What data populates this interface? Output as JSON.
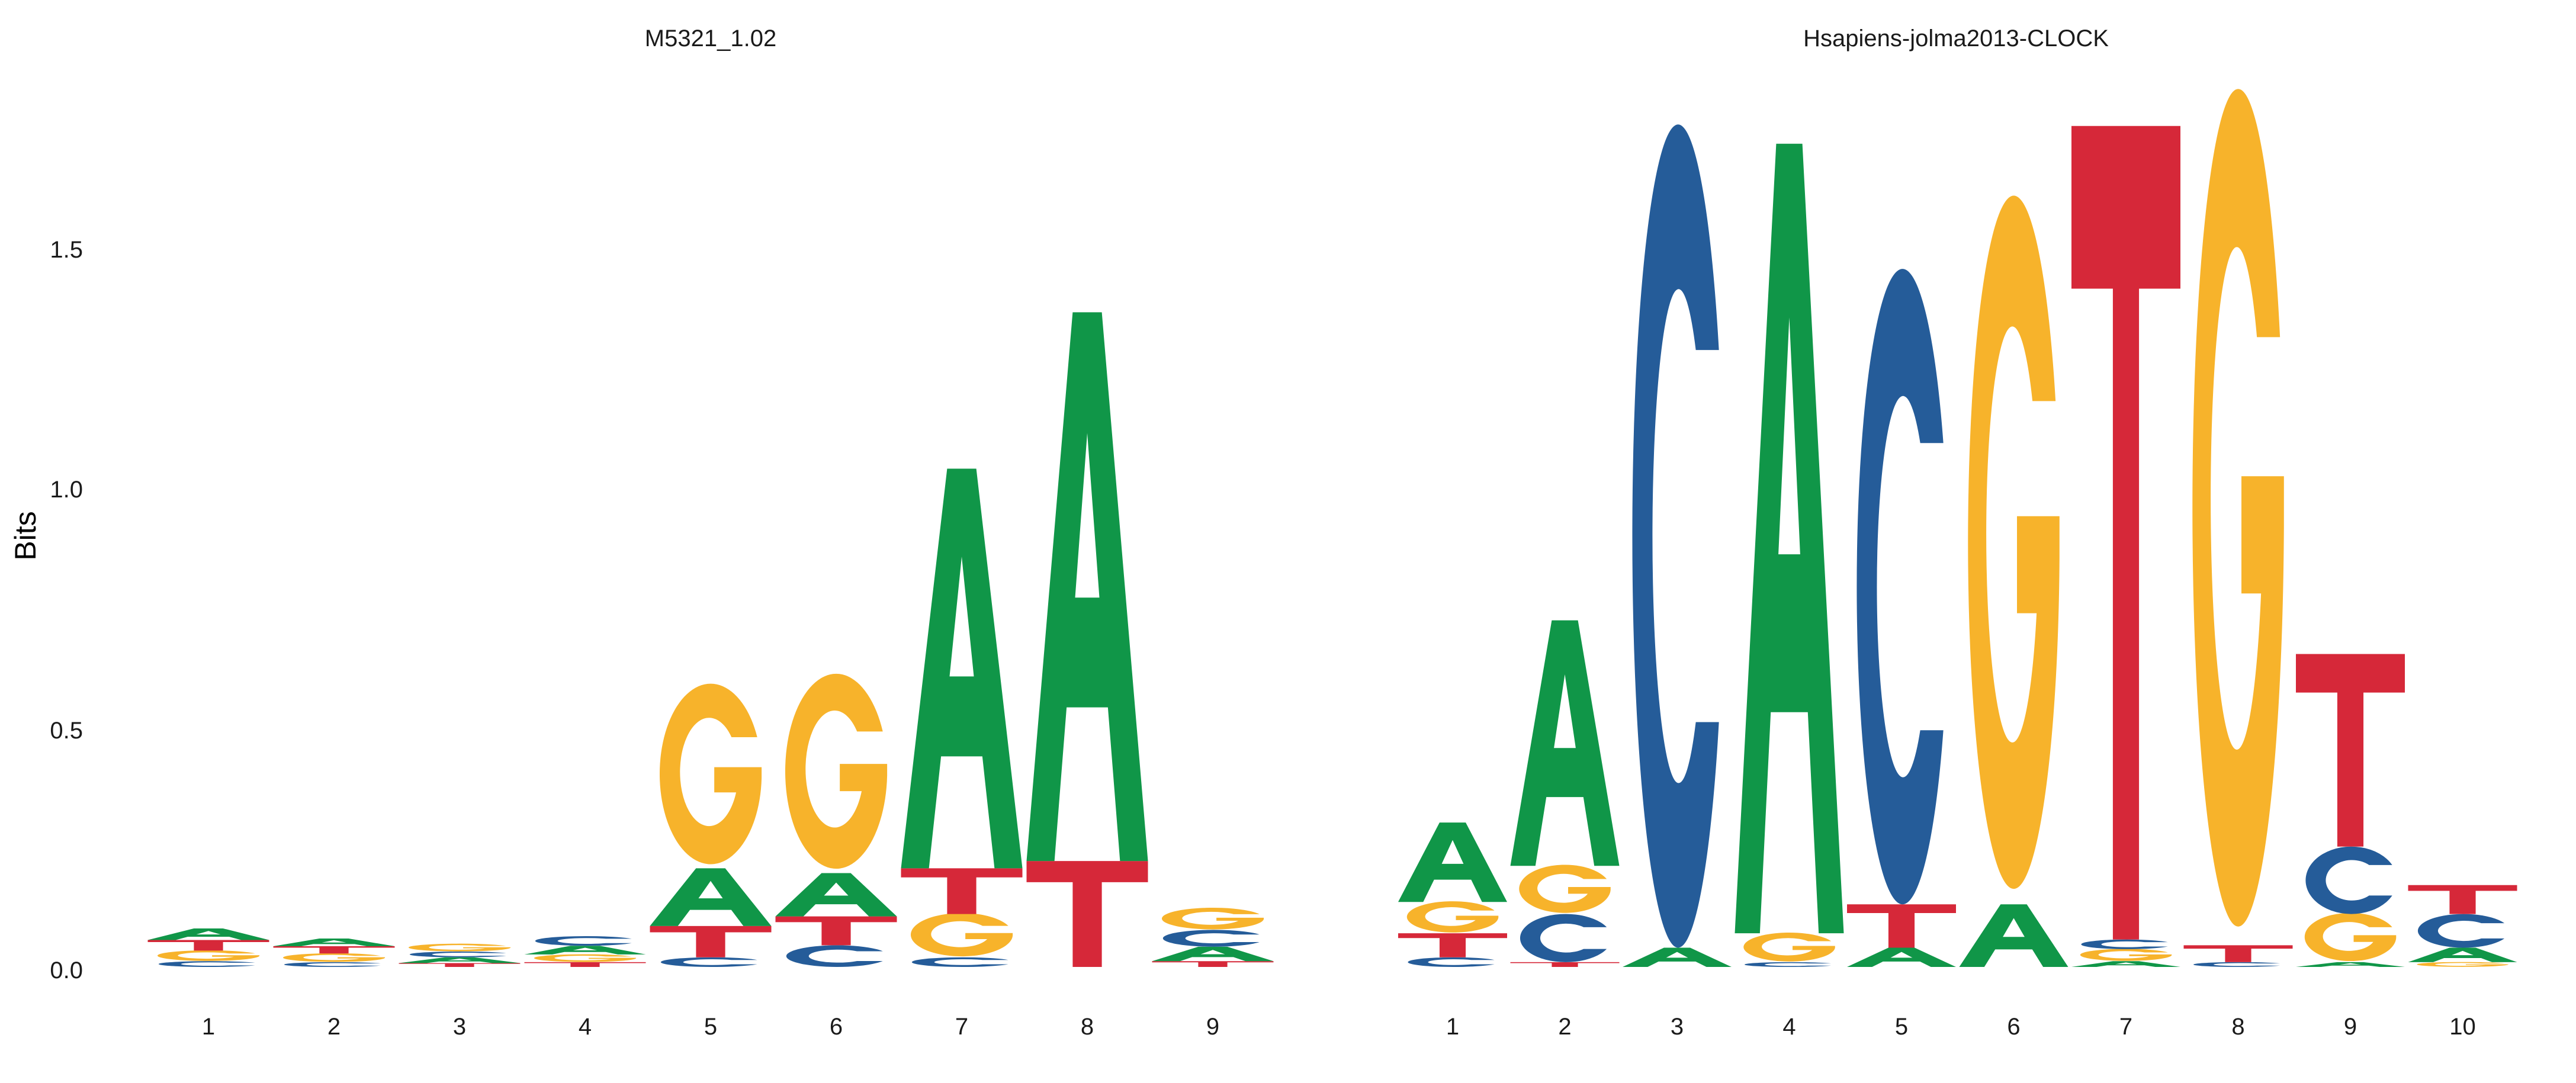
{
  "colors": {
    "A": "#109648",
    "C": "#255C99",
    "G": "#F7B32B",
    "T": "#D62839"
  },
  "chart_data": [
    {
      "type": "sequence-logo",
      "title": "M5321_1.02",
      "ylabel": "Bits",
      "ylim": [
        0,
        1.8
      ],
      "yticks": [
        "0.0",
        "0.5",
        "1.0",
        "1.5"
      ],
      "positions": [
        {
          "x": "1",
          "stack": [
            {
              "letter": "C",
              "bits": 0.012
            },
            {
              "letter": "G",
              "bits": 0.022
            },
            {
              "letter": "T",
              "bits": 0.022
            },
            {
              "letter": "A",
              "bits": 0.024
            }
          ]
        },
        {
          "x": "2",
          "stack": [
            {
              "letter": "C",
              "bits": 0.01
            },
            {
              "letter": "G",
              "bits": 0.018
            },
            {
              "letter": "T",
              "bits": 0.015
            },
            {
              "letter": "A",
              "bits": 0.016
            }
          ]
        },
        {
          "x": "3",
          "stack": [
            {
              "letter": "T",
              "bits": 0.008
            },
            {
              "letter": "A",
              "bits": 0.012
            },
            {
              "letter": "C",
              "bits": 0.012
            },
            {
              "letter": "G",
              "bits": 0.016
            }
          ]
        },
        {
          "x": "4",
          "stack": [
            {
              "letter": "T",
              "bits": 0.01
            },
            {
              "letter": "G",
              "bits": 0.016
            },
            {
              "letter": "A",
              "bits": 0.018
            },
            {
              "letter": "C",
              "bits": 0.02
            }
          ]
        },
        {
          "x": "5",
          "stack": [
            {
              "letter": "C",
              "bits": 0.02
            },
            {
              "letter": "T",
              "bits": 0.065
            },
            {
              "letter": "A",
              "bits": 0.12
            },
            {
              "letter": "G",
              "bits": 0.375
            }
          ]
        },
        {
          "x": "6",
          "stack": [
            {
              "letter": "C",
              "bits": 0.045
            },
            {
              "letter": "T",
              "bits": 0.06
            },
            {
              "letter": "A",
              "bits": 0.09
            },
            {
              "letter": "G",
              "bits": 0.405
            }
          ]
        },
        {
          "x": "7",
          "stack": [
            {
              "letter": "C",
              "bits": 0.02
            },
            {
              "letter": "G",
              "bits": 0.09
            },
            {
              "letter": "T",
              "bits": 0.095
            },
            {
              "letter": "A",
              "bits": 0.83
            }
          ]
        },
        {
          "x": "8",
          "stack": [
            {
              "letter": "T",
              "bits": 0.22
            },
            {
              "letter": "A",
              "bits": 1.14
            }
          ]
        },
        {
          "x": "9",
          "stack": [
            {
              "letter": "T",
              "bits": 0.012
            },
            {
              "letter": "A",
              "bits": 0.03
            },
            {
              "letter": "C",
              "bits": 0.035
            },
            {
              "letter": "G",
              "bits": 0.045
            }
          ]
        }
      ]
    },
    {
      "type": "sequence-logo",
      "title": "Hsapiens-jolma2013-CLOCK",
      "ylabel": "",
      "ylim": [
        0,
        1.8
      ],
      "yticks": [],
      "positions": [
        {
          "x": "1",
          "stack": [
            {
              "letter": "C",
              "bits": 0.02
            },
            {
              "letter": "T",
              "bits": 0.05
            },
            {
              "letter": "G",
              "bits": 0.065
            },
            {
              "letter": "A",
              "bits": 0.165
            }
          ]
        },
        {
          "x": "2",
          "stack": [
            {
              "letter": "T",
              "bits": 0.01
            },
            {
              "letter": "C",
              "bits": 0.1
            },
            {
              "letter": "G",
              "bits": 0.1
            },
            {
              "letter": "A",
              "bits": 0.51
            }
          ]
        },
        {
          "x": "3",
          "stack": [
            {
              "letter": "A",
              "bits": 0.04
            },
            {
              "letter": "C",
              "bits": 1.71
            }
          ]
        },
        {
          "x": "4",
          "stack": [
            {
              "letter": "C",
              "bits": 0.01
            },
            {
              "letter": "G",
              "bits": 0.06
            },
            {
              "letter": "A",
              "bits": 1.64
            }
          ]
        },
        {
          "x": "5",
          "stack": [
            {
              "letter": "A",
              "bits": 0.04
            },
            {
              "letter": "T",
              "bits": 0.09
            },
            {
              "letter": "C",
              "bits": 1.32
            }
          ]
        },
        {
          "x": "6",
          "stack": [
            {
              "letter": "A",
              "bits": 0.13
            },
            {
              "letter": "G",
              "bits": 1.44
            }
          ]
        },
        {
          "x": "7",
          "stack": [
            {
              "letter": "A",
              "bits": 0.012
            },
            {
              "letter": "G",
              "bits": 0.025
            },
            {
              "letter": "C",
              "bits": 0.02
            },
            {
              "letter": "T",
              "bits": 1.69
            }
          ]
        },
        {
          "x": "8",
          "stack": [
            {
              "letter": "C",
              "bits": 0.01
            },
            {
              "letter": "T",
              "bits": 0.035
            },
            {
              "letter": "G",
              "bits": 1.74
            }
          ]
        },
        {
          "x": "9",
          "stack": [
            {
              "letter": "A",
              "bits": 0.01
            },
            {
              "letter": "G",
              "bits": 0.1
            },
            {
              "letter": "C",
              "bits": 0.14
            },
            {
              "letter": "T",
              "bits": 0.4
            }
          ]
        },
        {
          "x": "10",
          "stack": [
            {
              "letter": "G",
              "bits": 0.01
            },
            {
              "letter": "A",
              "bits": 0.03
            },
            {
              "letter": "C",
              "bits": 0.07
            },
            {
              "letter": "T",
              "bits": 0.06
            }
          ]
        }
      ]
    }
  ]
}
